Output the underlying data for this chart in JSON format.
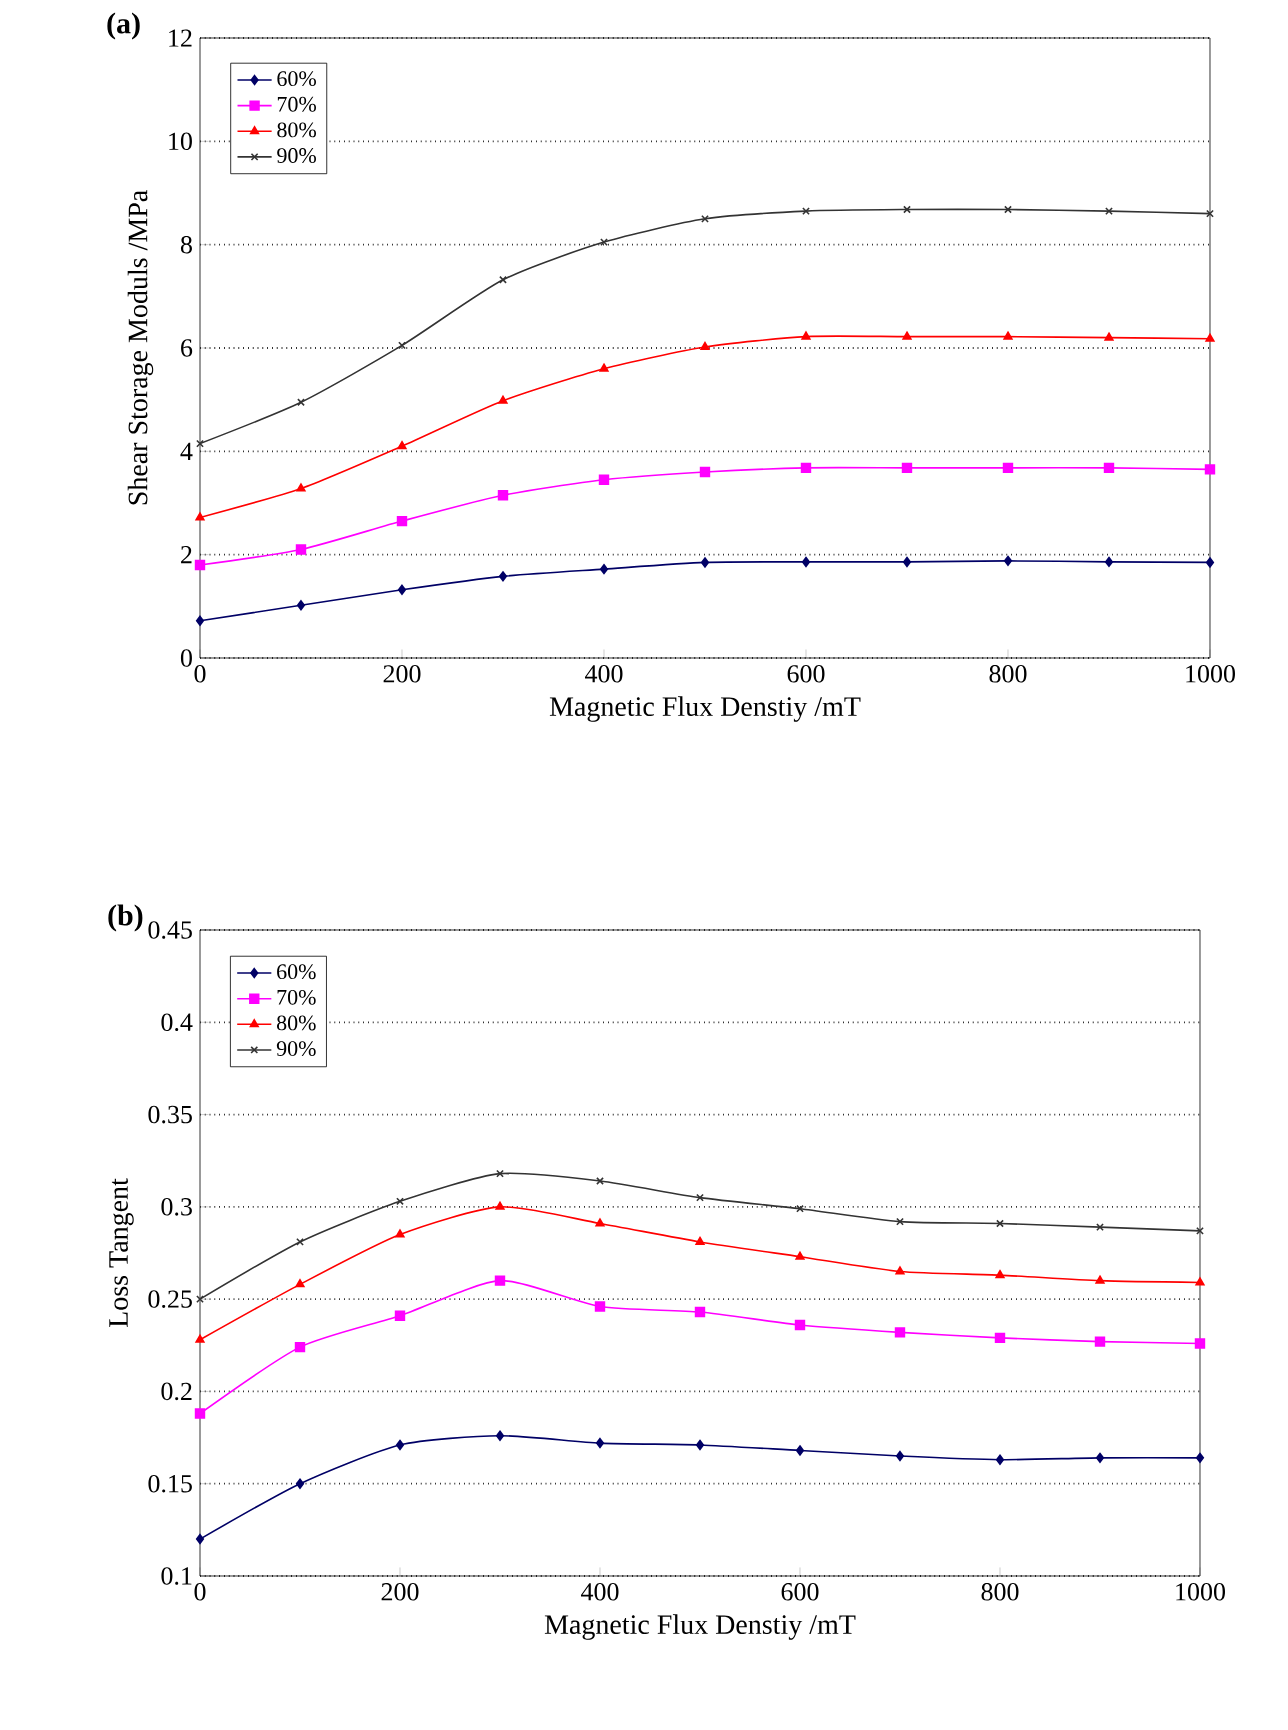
{
  "chart_data": [
    {
      "type": "line",
      "title": "(a)",
      "xlabel": "Magnetic Flux Denstiy /mT",
      "ylabel": "Shear Storage Moduls /MPa",
      "x": [
        0,
        100,
        200,
        300,
        400,
        500,
        600,
        700,
        800,
        900,
        1000
      ],
      "xlim": [
        0,
        1000
      ],
      "xticks": [
        0,
        200,
        400,
        600,
        800,
        1000
      ],
      "ylim": [
        0,
        12
      ],
      "yticks": [
        0,
        2,
        4,
        6,
        8,
        10,
        12
      ],
      "grid": "y",
      "legend": "top left",
      "line_style": "solid",
      "series": [
        {
          "name": "60%",
          "color": "#000066",
          "marker": "diamond",
          "values": [
            0.72,
            1.02,
            1.32,
            1.58,
            1.72,
            1.85,
            1.86,
            1.86,
            1.88,
            1.86,
            1.85
          ]
        },
        {
          "name": "70%",
          "color": "#ff00ff",
          "marker": "square",
          "values": [
            1.8,
            2.1,
            2.65,
            3.15,
            3.45,
            3.6,
            3.68,
            3.68,
            3.68,
            3.68,
            3.65
          ]
        },
        {
          "name": "80%",
          "color": "#ff0000",
          "marker": "triangle",
          "values": [
            2.72,
            3.28,
            4.1,
            4.98,
            5.6,
            6.02,
            6.22,
            6.22,
            6.22,
            6.2,
            6.18
          ]
        },
        {
          "name": "90%",
          "color": "#333333",
          "marker": "cross",
          "values": [
            4.15,
            4.95,
            6.05,
            7.32,
            8.05,
            8.5,
            8.65,
            8.68,
            8.68,
            8.65,
            8.6
          ]
        }
      ]
    },
    {
      "type": "line",
      "title": "(b)",
      "xlabel": "Magnetic Flux Denstiy /mT",
      "ylabel": "Loss Tangent",
      "x": [
        0,
        100,
        200,
        300,
        400,
        500,
        600,
        700,
        800,
        900,
        1000
      ],
      "xlim": [
        0,
        1000
      ],
      "xticks": [
        0,
        200,
        400,
        600,
        800,
        1000
      ],
      "ylim": [
        0.1,
        0.45
      ],
      "yticks": [
        0.1,
        0.15,
        0.2,
        0.25,
        0.3,
        0.35,
        0.4,
        0.45
      ],
      "grid": "y",
      "legend": "top left",
      "line_style": "solid",
      "series": [
        {
          "name": "60%",
          "color": "#000066",
          "marker": "diamond",
          "values": [
            0.12,
            0.15,
            0.171,
            0.176,
            0.172,
            0.171,
            0.168,
            0.165,
            0.163,
            0.164,
            0.164
          ]
        },
        {
          "name": "70%",
          "color": "#ff00ff",
          "marker": "square",
          "values": [
            0.188,
            0.224,
            0.241,
            0.26,
            0.246,
            0.243,
            0.236,
            0.232,
            0.229,
            0.227,
            0.226
          ]
        },
        {
          "name": "80%",
          "color": "#ff0000",
          "marker": "triangle",
          "values": [
            0.228,
            0.258,
            0.285,
            0.3,
            0.291,
            0.281,
            0.273,
            0.265,
            0.263,
            0.26,
            0.259
          ]
        },
        {
          "name": "90%",
          "color": "#333333",
          "marker": "cross",
          "values": [
            0.25,
            0.281,
            0.303,
            0.318,
            0.314,
            0.305,
            0.299,
            0.292,
            0.291,
            0.289,
            0.287
          ]
        }
      ]
    }
  ]
}
